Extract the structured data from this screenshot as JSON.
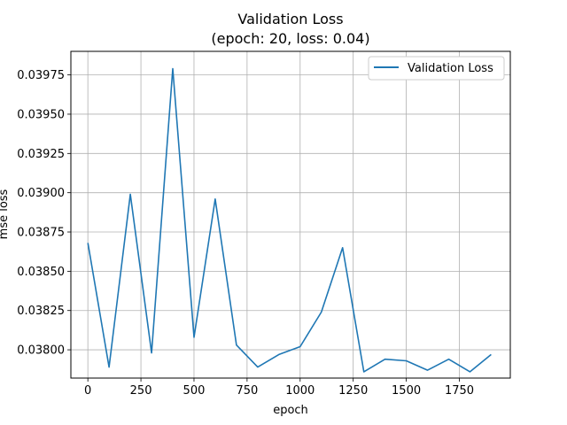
{
  "chart_data": {
    "type": "line",
    "title": "Validation Loss",
    "subtitle": "(epoch: 20, loss: 0.04)",
    "xlabel": "epoch",
    "ylabel": "mse loss",
    "xlim": [
      -80,
      1990
    ],
    "ylim": [
      0.03782,
      0.0399
    ],
    "grid": true,
    "legend_position": "top-right",
    "x_ticks": [
      0,
      250,
      500,
      750,
      1000,
      1250,
      1500,
      1750
    ],
    "x_tick_labels": [
      "0",
      "250",
      "500",
      "750",
      "1000",
      "1250",
      "1500",
      "1750"
    ],
    "y_ticks": [
      0.038,
      0.03825,
      0.0385,
      0.03875,
      0.039,
      0.03925,
      0.0395,
      0.03975
    ],
    "y_tick_labels": [
      "0.03800",
      "0.03825",
      "0.03850",
      "0.03875",
      "0.03900",
      "0.03925",
      "0.03950",
      "0.03975"
    ],
    "series": [
      {
        "name": "Validation Loss",
        "color": "#1f77b4",
        "x": [
          0,
          100,
          200,
          300,
          400,
          500,
          600,
          700,
          800,
          900,
          1000,
          1100,
          1200,
          1300,
          1400,
          1500,
          1600,
          1700,
          1800,
          1900
        ],
        "y": [
          0.03868,
          0.03789,
          0.03899,
          0.03798,
          0.03979,
          0.03808,
          0.03896,
          0.03803,
          0.03789,
          0.03797,
          0.03802,
          0.03824,
          0.03865,
          0.03786,
          0.03794,
          0.03793,
          0.03787,
          0.03794,
          0.03786,
          0.03797
        ]
      }
    ]
  }
}
